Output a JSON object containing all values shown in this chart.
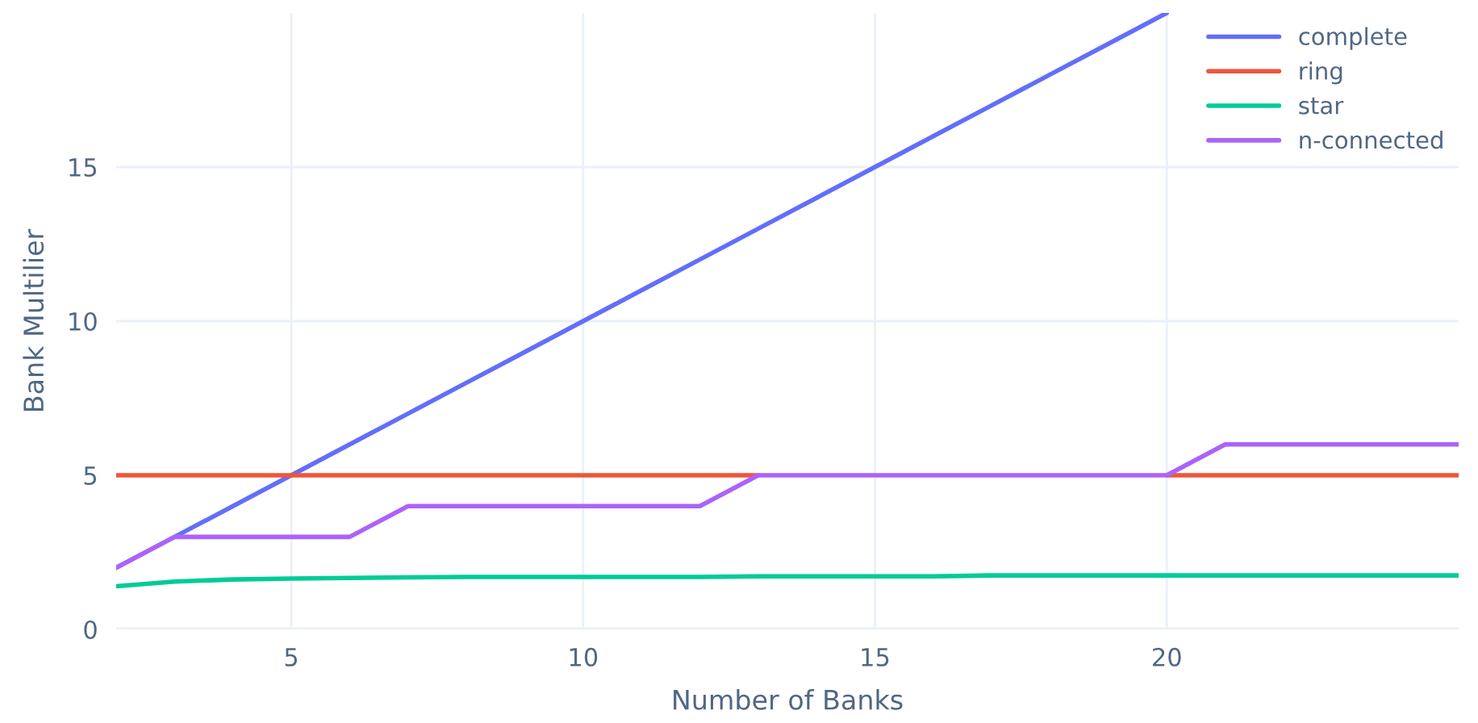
{
  "chart_data": {
    "type": "line",
    "xlabel": "Number of Banks",
    "ylabel": "Bank Multilier",
    "x": [
      2,
      3,
      4,
      5,
      6,
      7,
      8,
      9,
      10,
      11,
      12,
      13,
      14,
      15,
      16,
      17,
      18,
      19,
      20,
      21,
      22,
      23,
      24,
      25
    ],
    "series": [
      {
        "name": "complete",
        "color": "#636efa",
        "values": [
          2,
          3,
          4,
          5,
          6,
          7,
          8,
          9,
          10,
          11,
          12,
          13,
          14,
          15,
          16,
          17,
          18,
          19,
          20,
          null,
          null,
          null,
          null,
          null
        ]
      },
      {
        "name": "ring",
        "color": "#ef553b",
        "values": [
          5,
          5,
          5,
          5,
          5,
          5,
          5,
          5,
          5,
          5,
          5,
          5,
          null,
          null,
          null,
          null,
          null,
          null,
          5,
          5,
          5,
          5,
          5,
          5
        ]
      },
      {
        "name": "star",
        "color": "#00cc96",
        "values": [
          1.4,
          1.55,
          1.62,
          1.65,
          1.67,
          1.69,
          1.7,
          1.7,
          1.7,
          1.7,
          1.7,
          1.72,
          1.72,
          1.72,
          1.72,
          1.75,
          1.75,
          1.75,
          1.75,
          1.75,
          1.75,
          1.75,
          1.75,
          1.75
        ]
      },
      {
        "name": "n-connected",
        "color": "#ab63fa",
        "values": [
          2,
          3,
          3,
          3,
          3,
          4,
          4,
          4,
          4,
          4,
          4,
          5,
          5,
          5,
          5,
          5,
          5,
          5,
          5,
          6,
          6,
          6,
          6,
          6
        ]
      }
    ],
    "xlim": [
      2,
      25
    ],
    "xticks": [
      5,
      10,
      15,
      20
    ],
    "ylim": [
      0,
      20
    ],
    "yticks": [
      0,
      5,
      10,
      15
    ],
    "grid": true,
    "legend": "top right",
    "marker": "none",
    "line_style": "solid"
  }
}
